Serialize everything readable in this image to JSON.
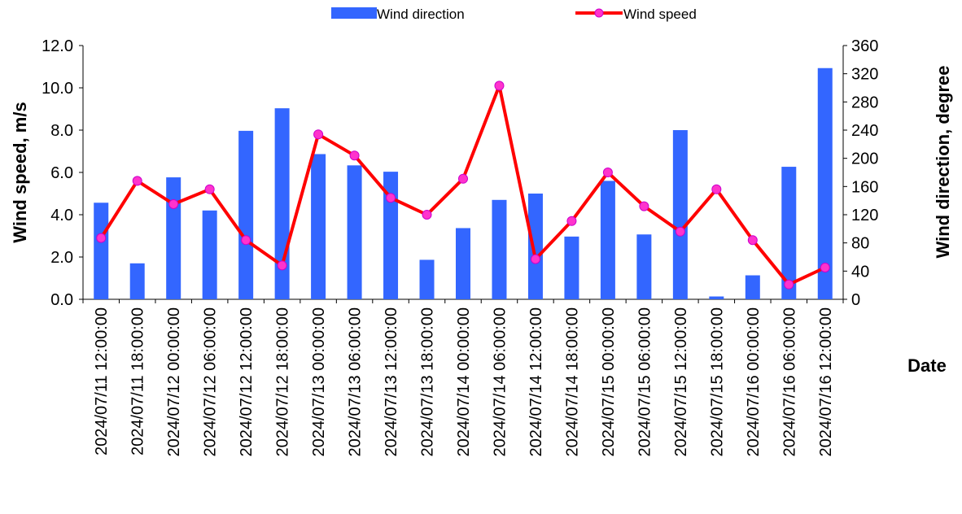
{
  "chart_data": {
    "type": "bar+line",
    "xlabel": "Date",
    "ylabel_left": "Wind speed, m/s",
    "ylabel_right": "Wind direction, degree",
    "ylim_left": [
      0,
      12
    ],
    "ylim_right": [
      0,
      360
    ],
    "yticks_left": [
      "0.0",
      "2.0",
      "4.0",
      "6.0",
      "8.0",
      "10.0",
      "12.0"
    ],
    "yticks_right": [
      "0",
      "40",
      "80",
      "120",
      "160",
      "200",
      "240",
      "280",
      "320",
      "360"
    ],
    "legend_position": "top-center",
    "grid": false,
    "categories": [
      "2024/07/11 12:00:00",
      "2024/07/11 18:00:00",
      "2024/07/12 00:00:00",
      "2024/07/12 06:00:00",
      "2024/07/12 12:00:00",
      "2024/07/12 18:00:00",
      "2024/07/13 00:00:00",
      "2024/07/13 06:00:00",
      "2024/07/13 12:00:00",
      "2024/07/13 18:00:00",
      "2024/07/14 00:00:00",
      "2024/07/14 06:00:00",
      "2024/07/14 12:00:00",
      "2024/07/14 18:00:00",
      "2024/07/15 00:00:00",
      "2024/07/15 06:00:00",
      "2024/07/15 12:00:00",
      "2024/07/15 18:00:00",
      "2024/07/16 00:00:00",
      "2024/07/16 06:00:00",
      "2024/07/16 12:00:00"
    ],
    "series": [
      {
        "name": "Wind direction",
        "type": "bar",
        "axis": "right",
        "color": "#3366ff",
        "values": [
          137,
          51,
          173,
          126,
          239,
          271,
          206,
          190,
          181,
          56,
          101,
          141,
          150,
          89,
          168,
          92,
          240,
          4,
          34,
          188,
          328
        ]
      },
      {
        "name": "Wind speed",
        "type": "line",
        "axis": "left",
        "color": "#ff0000",
        "marker_color": "#ff33cc",
        "values": [
          2.9,
          5.6,
          4.5,
          5.2,
          2.8,
          1.6,
          7.8,
          6.8,
          4.8,
          4.0,
          5.7,
          10.1,
          1.9,
          3.7,
          6.0,
          4.4,
          3.2,
          5.2,
          2.8,
          0.7,
          1.5
        ]
      }
    ]
  }
}
